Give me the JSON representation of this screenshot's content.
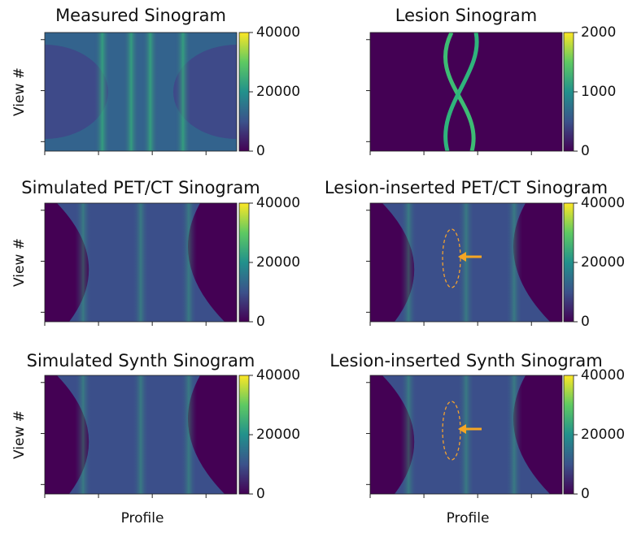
{
  "chart_data": [
    {
      "type": "image",
      "title": "Measured Sinogram",
      "ylabel": "View #",
      "clim": [
        0,
        40000
      ],
      "cticks": [
        0,
        20000,
        40000
      ],
      "style": "measured"
    },
    {
      "type": "image",
      "title": "Lesion Sinogram",
      "clim": [
        0,
        2000
      ],
      "cticks": [
        0,
        1000,
        2000
      ],
      "style": "lesion"
    },
    {
      "type": "image",
      "title": "Simulated PET/CT Sinogram",
      "ylabel": "View #",
      "clim": [
        0,
        40000
      ],
      "cticks": [
        0,
        20000,
        40000
      ],
      "style": "simulated"
    },
    {
      "type": "image",
      "title": "Lesion-inserted PET/CT Sinogram",
      "clim": [
        0,
        40000
      ],
      "cticks": [
        0,
        20000,
        40000
      ],
      "style": "simulated",
      "marker": true
    },
    {
      "type": "image",
      "title": "Simulated Synth Sinogram",
      "ylabel": "View #",
      "xlabel": "Profile",
      "clim": [
        0,
        40000
      ],
      "cticks": [
        0,
        20000,
        40000
      ],
      "style": "simulated"
    },
    {
      "type": "image",
      "title": "Lesion-inserted Synth Sinogram",
      "xlabel": "Profile",
      "clim": [
        0,
        40000
      ],
      "cticks": [
        0,
        20000,
        40000
      ],
      "style": "simulated",
      "marker": true
    }
  ]
}
